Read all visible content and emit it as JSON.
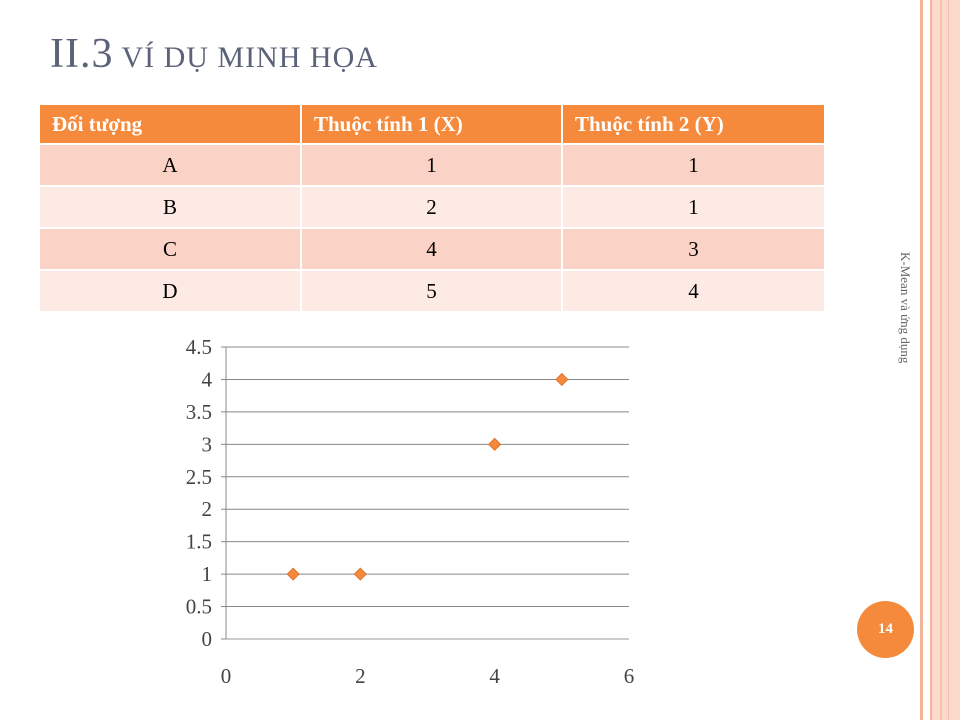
{
  "slide": {
    "title_main": "II.3",
    "title_rest": " VÍ DỤ MINH HỌA",
    "side_label": "K-Mean và ứng dụng",
    "page_number": "14",
    "accent_color": "#f58a3c"
  },
  "table": {
    "headers": [
      "Đối tượng",
      "Thuộc tính 1 (X)",
      "Thuộc tính 2 (Y)"
    ],
    "rows": [
      [
        "A",
        "1",
        "1"
      ],
      [
        "B",
        "2",
        "1"
      ],
      [
        "C",
        "4",
        "3"
      ],
      [
        "D",
        "5",
        "4"
      ]
    ]
  },
  "chart_data": {
    "type": "scatter",
    "title": "",
    "xlabel": "",
    "ylabel": "",
    "xlim": [
      0,
      6
    ],
    "ylim": [
      0,
      4.5
    ],
    "x_ticks": [
      "0",
      "2",
      "4",
      "6"
    ],
    "y_ticks": [
      "0",
      "0.5",
      "1",
      "1.5",
      "2",
      "2.5",
      "3",
      "3.5",
      "4",
      "4.5"
    ],
    "grid": "horizontal",
    "marker": "diamond",
    "color": "#f58a3c",
    "series": [
      {
        "x": [
          1,
          2,
          4,
          5
        ],
        "y": [
          1,
          1,
          3,
          4
        ]
      }
    ]
  }
}
